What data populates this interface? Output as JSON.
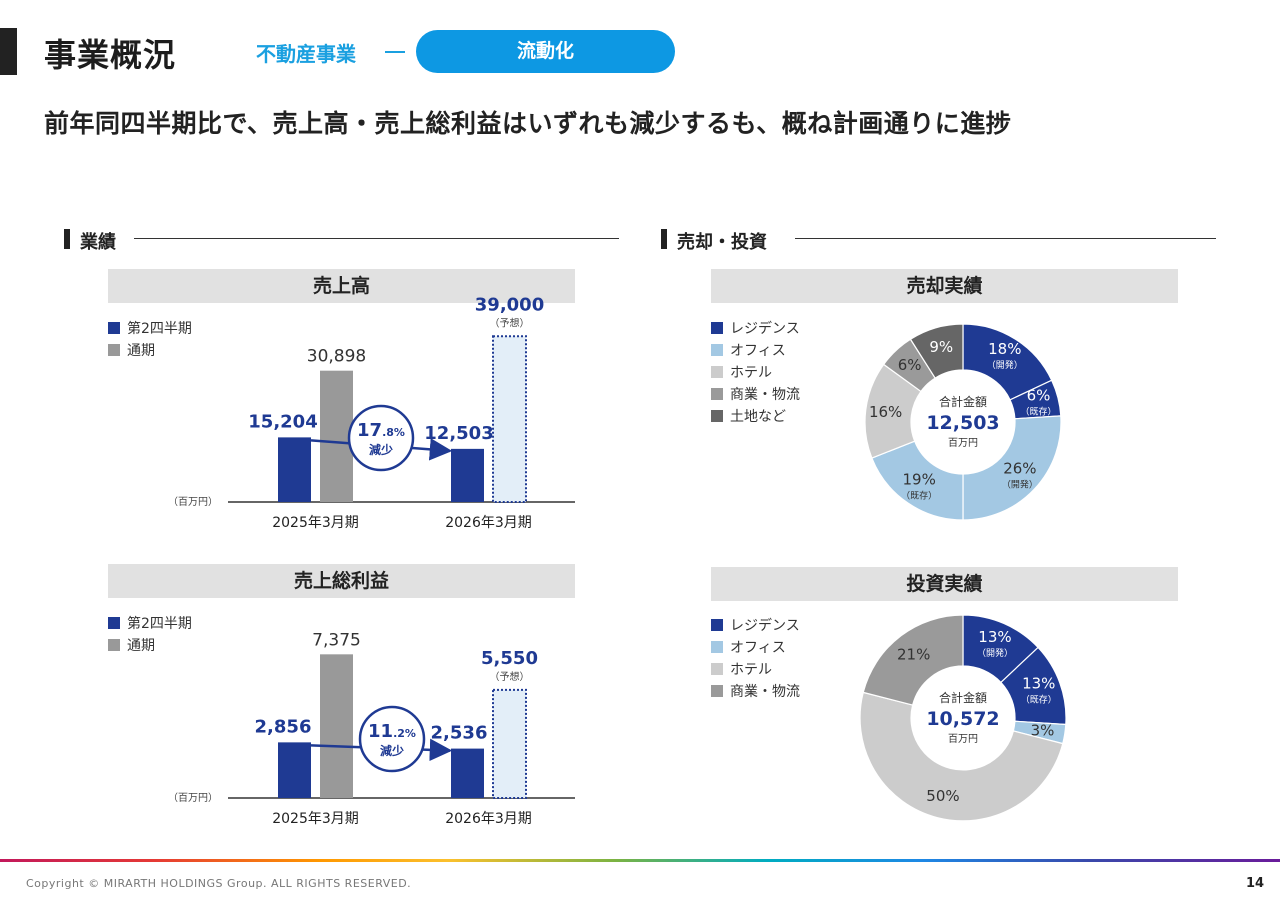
{
  "header": {
    "title": "事業概況",
    "segment": "不動産事業",
    "pill": "流動化",
    "headline": "前年同四半期比で、売上高・売上総利益はいずれも減少するも、概ね計画通りに進捗"
  },
  "sections": {
    "left": "業績",
    "right": "売却・投資"
  },
  "colors": {
    "navy": "#1f3a93",
    "gray": "#999999",
    "light_blue": "#a3c8e3",
    "light_gray": "#cccccc",
    "mid_gray": "#9a9a9a",
    "dark_gray": "#666666",
    "accent": "#0d98e3"
  },
  "bar_legend": [
    "第2四半期",
    "通期"
  ],
  "pie_legend_sales": [
    "レジデンス",
    "オフィス",
    "ホテル",
    "商業・物流",
    "土地など"
  ],
  "pie_legend_invest": [
    "レジデンス",
    "オフィス",
    "ホテル",
    "商業・物流"
  ],
  "chart_data": [
    {
      "type": "bar",
      "title": "売上高",
      "unit": "（百万円）",
      "categories": [
        "2025年3月期",
        "2026年3月期"
      ],
      "series": [
        {
          "name": "第2四半期",
          "values": [
            15204,
            12503
          ],
          "labels": [
            "15,204",
            "12,503"
          ]
        },
        {
          "name": "通期",
          "values": [
            30898,
            39000
          ],
          "labels": [
            "30,898",
            "39,000"
          ],
          "forecast": [
            false,
            true
          ]
        }
      ],
      "forecast_note": "（予想）",
      "change": {
        "major": "17",
        "minor": ".8%",
        "text": "減少"
      },
      "ylim": [
        0,
        40000
      ]
    },
    {
      "type": "bar",
      "title": "売上総利益",
      "unit": "（百万円）",
      "categories": [
        "2025年3月期",
        "2026年3月期"
      ],
      "series": [
        {
          "name": "第2四半期",
          "values": [
            2856,
            2536
          ],
          "labels": [
            "2,856",
            "2,536"
          ]
        },
        {
          "name": "通期",
          "values": [
            7375,
            5550
          ],
          "labels": [
            "7,375",
            "5,550"
          ],
          "forecast": [
            false,
            true
          ]
        }
      ],
      "forecast_note": "（予想）",
      "change": {
        "major": "11",
        "minor": ".2%",
        "text": "減少"
      },
      "ylim": [
        0,
        7700
      ]
    },
    {
      "type": "pie",
      "title": "売却実績",
      "center": {
        "label": "合計金額",
        "value": "12,503",
        "unit": "百万円"
      },
      "slices": [
        {
          "category": "レジデンス",
          "sub": "（開発）",
          "pct": 18,
          "label": "18%"
        },
        {
          "category": "レジデンス",
          "sub": "（既存）",
          "pct": 6,
          "label": "6%"
        },
        {
          "category": "オフィス",
          "sub": "（開発）",
          "pct": 26,
          "label": "26%"
        },
        {
          "category": "オフィス",
          "sub": "（既存）",
          "pct": 19,
          "label": "19%"
        },
        {
          "category": "ホテル",
          "sub": "",
          "pct": 16,
          "label": "16%"
        },
        {
          "category": "商業・物流",
          "sub": "",
          "pct": 6,
          "label": "6%"
        },
        {
          "category": "土地など",
          "sub": "",
          "pct": 9,
          "label": "9%"
        }
      ]
    },
    {
      "type": "pie",
      "title": "投資実績",
      "center": {
        "label": "合計金額",
        "value": "10,572",
        "unit": "百万円"
      },
      "slices": [
        {
          "category": "レジデンス",
          "sub": "（開発）",
          "pct": 13,
          "label": "13%"
        },
        {
          "category": "レジデンス",
          "sub": "（既存）",
          "pct": 13,
          "label": "13%"
        },
        {
          "category": "オフィス",
          "sub": "",
          "pct": 3,
          "label": "3%"
        },
        {
          "category": "ホテル",
          "sub": "",
          "pct": 50,
          "label": "50%"
        },
        {
          "category": "商業・物流",
          "sub": "",
          "pct": 21,
          "label": "21%"
        }
      ]
    }
  ],
  "footer": {
    "copyright": "Copyright © MIRARTH HOLDINGS Group. ALL RIGHTS RESERVED.",
    "page": "14"
  }
}
